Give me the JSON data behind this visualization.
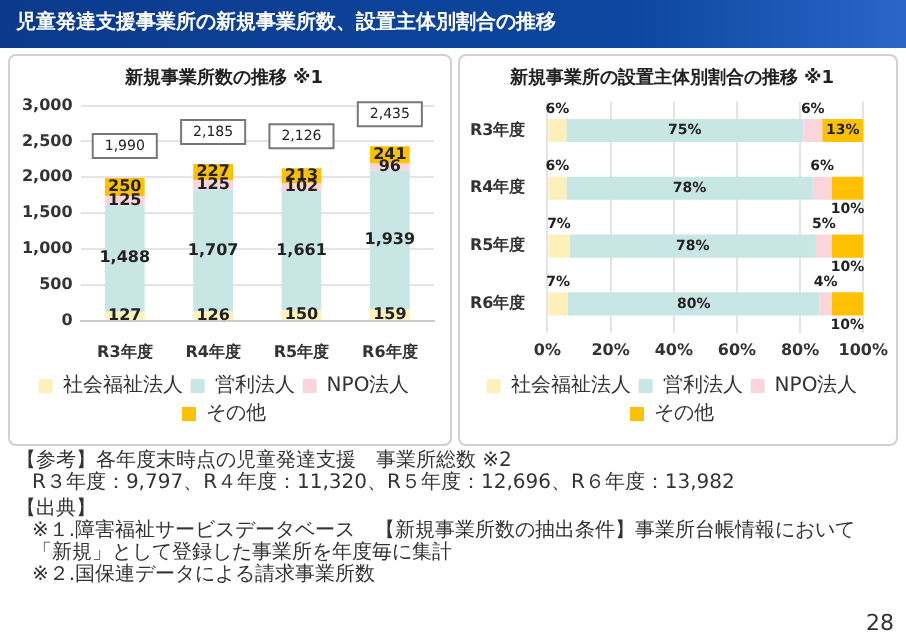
{
  "chart_data": [
    {
      "type": "bar",
      "title": "新規事業所数の推移 ※1",
      "stacked": true,
      "categories": [
        "R3年度",
        "R4年度",
        "R5年度",
        "R6年度"
      ],
      "series": [
        {
          "name": "社会福祉法人",
          "color": "#fdf0b8",
          "values": [
            127,
            126,
            150,
            159
          ],
          "value_labels": [
            "127",
            "126",
            "150",
            "159"
          ]
        },
        {
          "name": "営利法人",
          "color": "#c8e6e4",
          "values": [
            1488,
            1707,
            1661,
            1939
          ],
          "value_labels": [
            "1,488",
            "1,707",
            "1,661",
            "1,939"
          ]
        },
        {
          "name": "NPO法人",
          "color": "#fad6da",
          "values": [
            125,
            125,
            102,
            96
          ],
          "value_labels": [
            "125",
            "125",
            "102",
            "96"
          ]
        },
        {
          "name": "その他",
          "color": "#ffc000",
          "values": [
            250,
            227,
            213,
            241
          ],
          "value_labels": [
            "250",
            "227",
            "213",
            "241"
          ]
        }
      ],
      "totals": [
        "1,990",
        "2,185",
        "2,126",
        "2,435"
      ],
      "ylim": [
        0,
        3000
      ],
      "yticks": [
        {
          "value": 0,
          "label": "0"
        },
        {
          "value": 500,
          "label": "500"
        },
        {
          "value": 1000,
          "label": "1,000"
        },
        {
          "value": 1500,
          "label": "1,500"
        },
        {
          "value": 2000,
          "label": "2,000"
        },
        {
          "value": 2500,
          "label": "2,500"
        },
        {
          "value": 3000,
          "label": "3,000"
        }
      ],
      "grid": "y",
      "legend": "bottom",
      "annotations": [
        "児童発達支援事業所の新規事業所数、設置主体別割合の推移",
        "【参考】各年度末時点の児童発達支援　事業所総数 ※2",
        "R３年度：9,797、R４年度：11,320、R５年度：12,696、R６年度：13,982",
        "【出典】",
        "※１.障害福祉サービスデータベース　【新規事業所数の抽出条件】事業所台帳情報において「新規」として登録した事業所を年度毎に集計",
        "※２.国保連データによる請求事業所数",
        "28"
      ]
    },
    {
      "type": "bar",
      "title": "新規事業所の設置主体別割合の推移 ※1",
      "stacked": true,
      "orientation": "horizontal",
      "categories": [
        "R3年度",
        "R4年度",
        "R5年度",
        "R6年度"
      ],
      "series": [
        {
          "name": "社会福祉法人",
          "color": "#fdf0b8",
          "values": [
            6,
            6,
            7,
            6.5
          ],
          "value_labels": [
            "6%",
            "6%",
            "7%",
            "7%"
          ]
        },
        {
          "name": "営利法人",
          "color": "#c8e6e4",
          "values": [
            75,
            78,
            78,
            79.6
          ],
          "value_labels": [
            "75%",
            "78%",
            "78%",
            "80%"
          ]
        },
        {
          "name": "NPO法人",
          "color": "#fad6da",
          "values": [
            6,
            6,
            5,
            3.9
          ],
          "value_labels": [
            "6%",
            "6%",
            "5%",
            "4%"
          ]
        },
        {
          "name": "その他",
          "color": "#ffc000",
          "values": [
            13,
            10,
            10,
            9.9
          ],
          "value_labels": [
            "13%",
            "10%",
            "10%",
            "10%"
          ]
        }
      ],
      "xlim": [
        0,
        100
      ],
      "xticks": [
        {
          "value": 0,
          "label": "0%"
        },
        {
          "value": 20,
          "label": "20%"
        },
        {
          "value": 40,
          "label": "40%"
        },
        {
          "value": 60,
          "label": "60%"
        },
        {
          "value": 80,
          "label": "80%"
        },
        {
          "value": 100,
          "label": "100%"
        }
      ],
      "grid": "x",
      "legend": "bottom"
    }
  ]
}
